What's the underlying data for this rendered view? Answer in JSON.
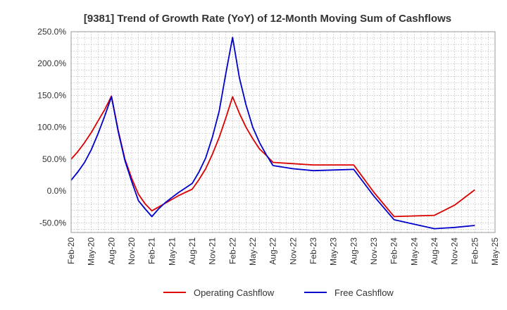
{
  "chart_data": {
    "type": "line",
    "title": "[9381]  Trend of Growth Rate (YoY) of 12-Month Moving Sum of Cashflows",
    "xlabel": "",
    "ylabel": "",
    "ylim": [
      -65,
      250
    ],
    "y_ticks": [
      250,
      200,
      150,
      100,
      50,
      0,
      -50
    ],
    "y_tick_labels": [
      "250.0%",
      "200.0%",
      "150.0%",
      "100.0%",
      "50.0%",
      "0.0%",
      "-50.0%"
    ],
    "x_tick_labels": [
      "Feb-20",
      "May-20",
      "Aug-20",
      "Nov-20",
      "Feb-21",
      "May-21",
      "Aug-21",
      "Nov-21",
      "Feb-22",
      "May-22",
      "Aug-22",
      "Nov-22",
      "Feb-23",
      "May-23",
      "Aug-23",
      "Nov-23",
      "Feb-24",
      "May-24",
      "Aug-24",
      "Nov-24",
      "Feb-25",
      "May-25"
    ],
    "x_months_range": [
      0,
      63
    ],
    "grid": true,
    "legend_position": "bottom",
    "series": [
      {
        "name": "Operating Cashflow",
        "color": "#dd0000",
        "x": [
          0,
          1,
          2,
          3,
          4,
          5,
          6,
          7,
          8,
          9,
          10,
          11,
          12,
          13,
          14,
          15,
          16,
          17,
          18,
          19,
          20,
          21,
          22,
          23,
          24,
          25,
          26,
          27,
          28,
          29,
          30,
          33,
          36,
          39,
          42,
          45,
          48,
          51,
          54,
          57,
          60
        ],
        "y": [
          50,
          62,
          76,
          92,
          110,
          128,
          149,
          95,
          50,
          20,
          -5,
          -20,
          -31,
          -25,
          -19,
          -13,
          -7,
          -2,
          3,
          18,
          35,
          58,
          84,
          115,
          148,
          122,
          100,
          82,
          66,
          56,
          45,
          43,
          41,
          41,
          41,
          -2,
          -40,
          -39,
          -38,
          -22,
          2
        ]
      },
      {
        "name": "Free Cashflow",
        "color": "#0000cc",
        "x": [
          0,
          1,
          2,
          3,
          4,
          5,
          6,
          7,
          8,
          9,
          10,
          11,
          12,
          13,
          14,
          15,
          16,
          17,
          18,
          19,
          20,
          21,
          22,
          23,
          24,
          25,
          26,
          27,
          28,
          29,
          30,
          33,
          36,
          39,
          42,
          45,
          48,
          51,
          54,
          57,
          60
        ],
        "y": [
          17,
          30,
          45,
          65,
          90,
          118,
          148,
          93,
          48,
          15,
          -15,
          -28,
          -40,
          -28,
          -18,
          -10,
          -2,
          5,
          12,
          30,
          52,
          85,
          125,
          185,
          241,
          178,
          135,
          100,
          76,
          57,
          40,
          35,
          32,
          33,
          34,
          -8,
          -45,
          -52,
          -59,
          -57,
          -54
        ]
      }
    ]
  }
}
